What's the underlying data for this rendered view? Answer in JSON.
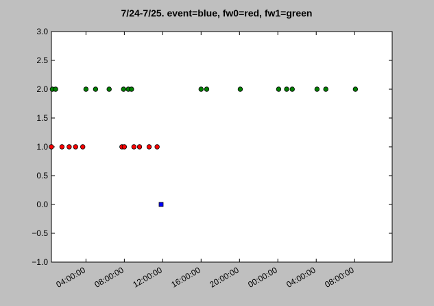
{
  "chart_data": {
    "type": "scatter",
    "title": "7/24-7/25. event=blue, fw0=red, fw1=green",
    "xlabel": "",
    "ylabel": "",
    "xlim": [
      "2014-07-24 00:24:00",
      "2014-07-25 11:55:00"
    ],
    "ylim": [
      -1.0,
      3.0
    ],
    "yticks": [
      -1.0,
      -0.5,
      0.0,
      0.5,
      1.0,
      1.5,
      2.0,
      2.5,
      3.0
    ],
    "ytick_labels": [
      "−1.0",
      "−0.5",
      "0.0",
      "0.5",
      "1.0",
      "1.5",
      "2.0",
      "2.5",
      "3.0"
    ],
    "xticks": [
      "2014-07-24 04:00:00",
      "2014-07-24 08:00:00",
      "2014-07-24 12:00:00",
      "2014-07-24 16:00:00",
      "2014-07-24 20:00:00",
      "2014-07-25 00:00:00",
      "2014-07-25 04:00:00",
      "2014-07-25 08:00:00"
    ],
    "xtick_labels": [
      "04:00:00",
      "08:00:00",
      "12:00:00",
      "16:00:00",
      "20:00:00",
      "00:00:00",
      "04:00:00",
      "08:00:00"
    ],
    "grid": false,
    "series": [
      {
        "marker": "square",
        "color": "#0000ff",
        "x": [
          "2014-07-24 11:50:00"
        ],
        "y": [
          0.0
        ]
      },
      {
        "marker": "circle",
        "color": "#ff0000",
        "x": [
          "2014-07-24 00:24:00",
          "2014-07-24 01:30:00",
          "2014-07-24 02:15:00",
          "2014-07-24 02:55:00",
          "2014-07-24 03:40:00",
          "2014-07-24 07:45:00",
          "2014-07-24 08:00:00",
          "2014-07-24 09:00:00",
          "2014-07-24 09:35:00",
          "2014-07-24 10:35:00",
          "2014-07-24 11:25:00"
        ],
        "y": [
          1.0,
          1.0,
          1.0,
          1.0,
          1.0,
          1.0,
          1.0,
          1.0,
          1.0,
          1.0,
          1.0
        ]
      },
      {
        "marker": "circle",
        "color": "#008000",
        "x": [
          "2014-07-24 00:30:00",
          "2014-07-24 00:50:00",
          "2014-07-24 04:00:00",
          "2014-07-24 05:00:00",
          "2014-07-24 06:25:00",
          "2014-07-24 07:55:00",
          "2014-07-24 08:25:00",
          "2014-07-24 08:45:00",
          "2014-07-24 16:00:00",
          "2014-07-24 16:35:00",
          "2014-07-24 20:05:00",
          "2014-07-25 00:05:00",
          "2014-07-25 00:55:00",
          "2014-07-25 01:30:00",
          "2014-07-25 04:05:00",
          "2014-07-25 05:00:00",
          "2014-07-25 08:05:00"
        ],
        "y": [
          2.0,
          2.0,
          2.0,
          2.0,
          2.0,
          2.0,
          2.0,
          2.0,
          2.0,
          2.0,
          2.0,
          2.0,
          2.0,
          2.0,
          2.0,
          2.0,
          2.0
        ]
      }
    ]
  }
}
